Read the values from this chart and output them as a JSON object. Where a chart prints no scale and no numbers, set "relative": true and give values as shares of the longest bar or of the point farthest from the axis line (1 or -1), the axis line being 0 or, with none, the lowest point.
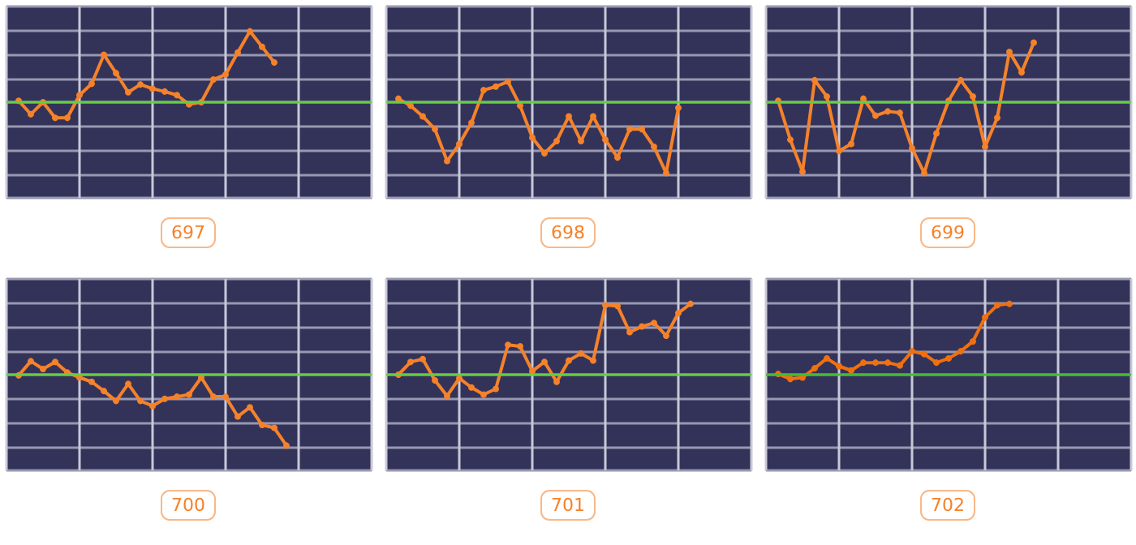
{
  "chart_data": [
    {
      "type": "line",
      "title": "697",
      "relative": true,
      "grid": true,
      "marker": "circle",
      "categories": [
        null,
        null,
        null,
        null,
        null,
        null,
        null,
        null,
        null,
        null,
        null,
        null,
        null,
        null,
        null,
        null,
        null,
        null,
        null,
        null,
        null,
        null,
        null,
        null,
        null,
        null,
        null,
        null,
        null,
        null,
        null
      ],
      "ref_lines": [
        {
          "axis": "y",
          "value": 0,
          "color": "#66cc44"
        }
      ],
      "series": [
        {
          "color": "#f5822a",
          "values": [
            null,
            0.02,
            -0.17,
            0,
            -0.22,
            -0.22,
            0.1,
            0.26,
            0.67,
            0.41,
            0.14,
            0.25,
            0.19,
            0.15,
            0.1,
            -0.03,
            0,
            0.32,
            0.39,
            0.7,
            1,
            0.78,
            0.56,
            null,
            null,
            null,
            null,
            null,
            null,
            null,
            null
          ]
        }
      ]
    },
    {
      "type": "line",
      "title": "698",
      "relative": true,
      "grid": true,
      "marker": "circle",
      "categories": [
        null,
        null,
        null,
        null,
        null,
        null,
        null,
        null,
        null,
        null,
        null,
        null,
        null,
        null,
        null,
        null,
        null,
        null,
        null,
        null,
        null,
        null,
        null,
        null,
        null,
        null,
        null,
        null,
        null,
        null,
        null
      ],
      "ref_lines": [
        {
          "axis": "y",
          "value": 0,
          "color": "#66cc44"
        }
      ],
      "series": [
        {
          "color": "#f5822a",
          "values": [
            null,
            0.05,
            -0.05,
            -0.2,
            -0.38,
            -0.83,
            -0.59,
            -0.29,
            0.17,
            0.22,
            0.29,
            -0.05,
            -0.5,
            -0.72,
            -0.55,
            -0.2,
            -0.55,
            -0.2,
            -0.53,
            -0.78,
            -0.38,
            -0.38,
            -0.63,
            -1,
            -0.08,
            null,
            null,
            null,
            null,
            null,
            null
          ]
        }
      ]
    },
    {
      "type": "line",
      "title": "699",
      "relative": true,
      "grid": true,
      "marker": "circle",
      "categories": [
        null,
        null,
        null,
        null,
        null,
        null,
        null,
        null,
        null,
        null,
        null,
        null,
        null,
        null,
        null,
        null,
        null,
        null,
        null,
        null,
        null,
        null,
        null,
        null,
        null,
        null,
        null,
        null,
        null,
        null,
        null
      ],
      "ref_lines": [
        {
          "axis": "y",
          "value": 0,
          "color": "#66cc44"
        }
      ],
      "series": [
        {
          "color": "#f5822a",
          "values": [
            null,
            0.02,
            -0.53,
            -0.98,
            0.31,
            0.08,
            -0.69,
            -0.59,
            0.05,
            -0.19,
            -0.13,
            -0.15,
            -0.65,
            -1,
            -0.44,
            0.02,
            0.31,
            0.08,
            -0.63,
            -0.22,
            0.71,
            0.42,
            0.84,
            null,
            null,
            null,
            null,
            null,
            null,
            null,
            null
          ]
        }
      ]
    },
    {
      "type": "line",
      "title": "700",
      "relative": true,
      "grid": true,
      "marker": "circle",
      "categories": [
        null,
        null,
        null,
        null,
        null,
        null,
        null,
        null,
        null,
        null,
        null,
        null,
        null,
        null,
        null,
        null,
        null,
        null,
        null,
        null,
        null,
        null,
        null,
        null,
        null,
        null,
        null,
        null,
        null,
        null,
        null
      ],
      "ref_lines": [
        {
          "axis": "y",
          "value": 0,
          "color": "#66cc44"
        }
      ],
      "series": [
        {
          "color": "#f5822a",
          "values": [
            null,
            -0.01,
            0.19,
            0.08,
            0.18,
            0.03,
            -0.04,
            -0.1,
            -0.23,
            -0.37,
            -0.13,
            -0.37,
            -0.44,
            -0.34,
            -0.31,
            -0.28,
            -0.04,
            -0.31,
            -0.31,
            -0.59,
            -0.46,
            -0.71,
            -0.75,
            -1,
            null,
            null,
            null,
            null,
            null,
            null,
            null
          ]
        }
      ]
    },
    {
      "type": "line",
      "title": "701",
      "relative": true,
      "grid": true,
      "marker": "circle",
      "categories": [
        null,
        null,
        null,
        null,
        null,
        null,
        null,
        null,
        null,
        null,
        null,
        null,
        null,
        null,
        null,
        null,
        null,
        null,
        null,
        null,
        null,
        null,
        null,
        null,
        null,
        null,
        null,
        null,
        null,
        null,
        null
      ],
      "ref_lines": [
        {
          "axis": "y",
          "value": 0,
          "color": "#66cc44"
        }
      ],
      "series": [
        {
          "color": "#f5822a",
          "values": [
            null,
            0,
            0.18,
            0.22,
            -0.08,
            -0.3,
            -0.05,
            -0.18,
            -0.28,
            -0.2,
            0.42,
            0.4,
            0.05,
            0.18,
            -0.1,
            0.2,
            0.3,
            0.2,
            0.98,
            0.97,
            0.6,
            0.68,
            0.73,
            0.55,
            0.87,
            1,
            null,
            null,
            null,
            null,
            null
          ]
        }
      ]
    },
    {
      "type": "line",
      "title": "702",
      "relative": true,
      "grid": true,
      "marker": "circle",
      "categories": [
        null,
        null,
        null,
        null,
        null,
        null,
        null,
        null,
        null,
        null,
        null,
        null,
        null,
        null,
        null,
        null,
        null,
        null,
        null,
        null,
        null,
        null,
        null,
        null,
        null,
        null,
        null,
        null,
        null,
        null,
        null
      ],
      "ref_lines": [
        {
          "axis": "y",
          "value": 0,
          "color": "#44bb33"
        }
      ],
      "series": [
        {
          "color": "#f07010",
          "values": [
            null,
            0.01,
            -0.06,
            -0.04,
            0.09,
            0.23,
            0.12,
            0.06,
            0.17,
            0.17,
            0.17,
            0.13,
            0.33,
            0.29,
            0.17,
            0.23,
            0.33,
            0.47,
            0.81,
            0.98,
            1,
            null,
            null,
            null,
            null,
            null,
            null,
            null,
            null,
            null,
            null
          ]
        }
      ]
    }
  ]
}
